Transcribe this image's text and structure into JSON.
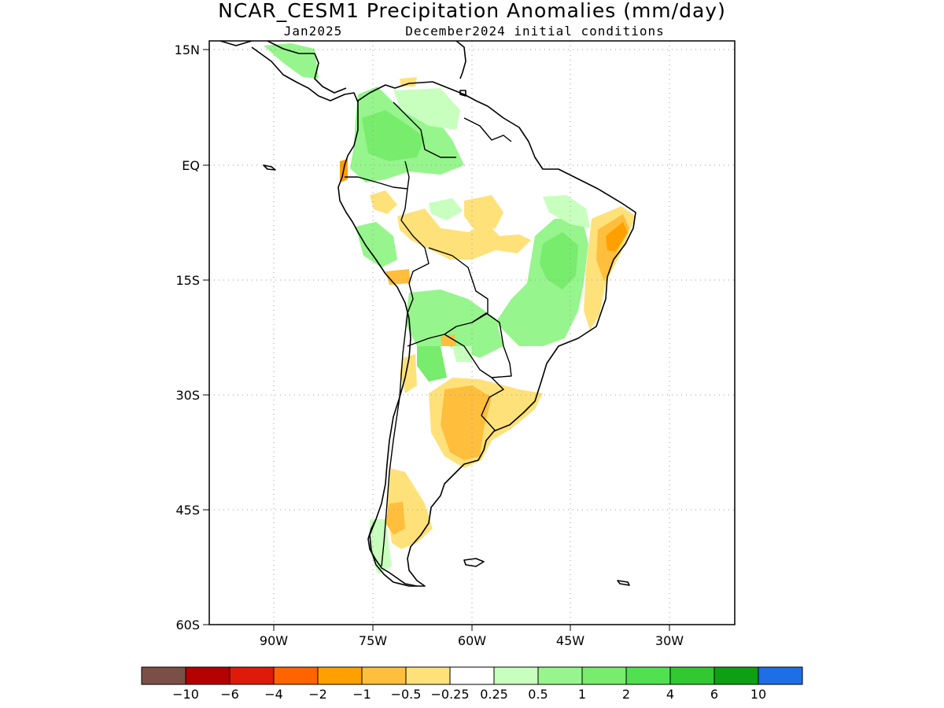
{
  "title": "NCAR_CESM1 Precipitation Anomalies (mm/day)",
  "subtitle_left": "Jan2025",
  "subtitle_right": "December2024 initial conditions",
  "lat_ticks": [
    "15N",
    "EQ",
    "15S",
    "30S",
    "45S",
    "60S"
  ],
  "lon_ticks": [
    "90W",
    "75W",
    "60W",
    "45W",
    "30W"
  ],
  "colorbar": {
    "colors": [
      "#7a5046",
      "#b40000",
      "#e01a0a",
      "#ff6400",
      "#ffa000",
      "#ffbe3c",
      "#ffe17a",
      "#ffffff",
      "#c8ffbe",
      "#96f58c",
      "#78ec6c",
      "#50e050",
      "#32c832",
      "#0ea012",
      "#1e6ee6"
    ],
    "labels": [
      "−10",
      "−6",
      "−4",
      "−2",
      "−1",
      "−0.5",
      "−0.25",
      "0.25",
      "0.5",
      "1",
      "2",
      "4",
      "6",
      "10"
    ]
  },
  "anomaly_colors": {
    "light_green": "#c8ffbe",
    "green": "#96f58c",
    "mid_green": "#78ec6c",
    "light_orange": "#ffe17a",
    "orange": "#ffbe3c",
    "dark_orange": "#ffa000"
  }
}
